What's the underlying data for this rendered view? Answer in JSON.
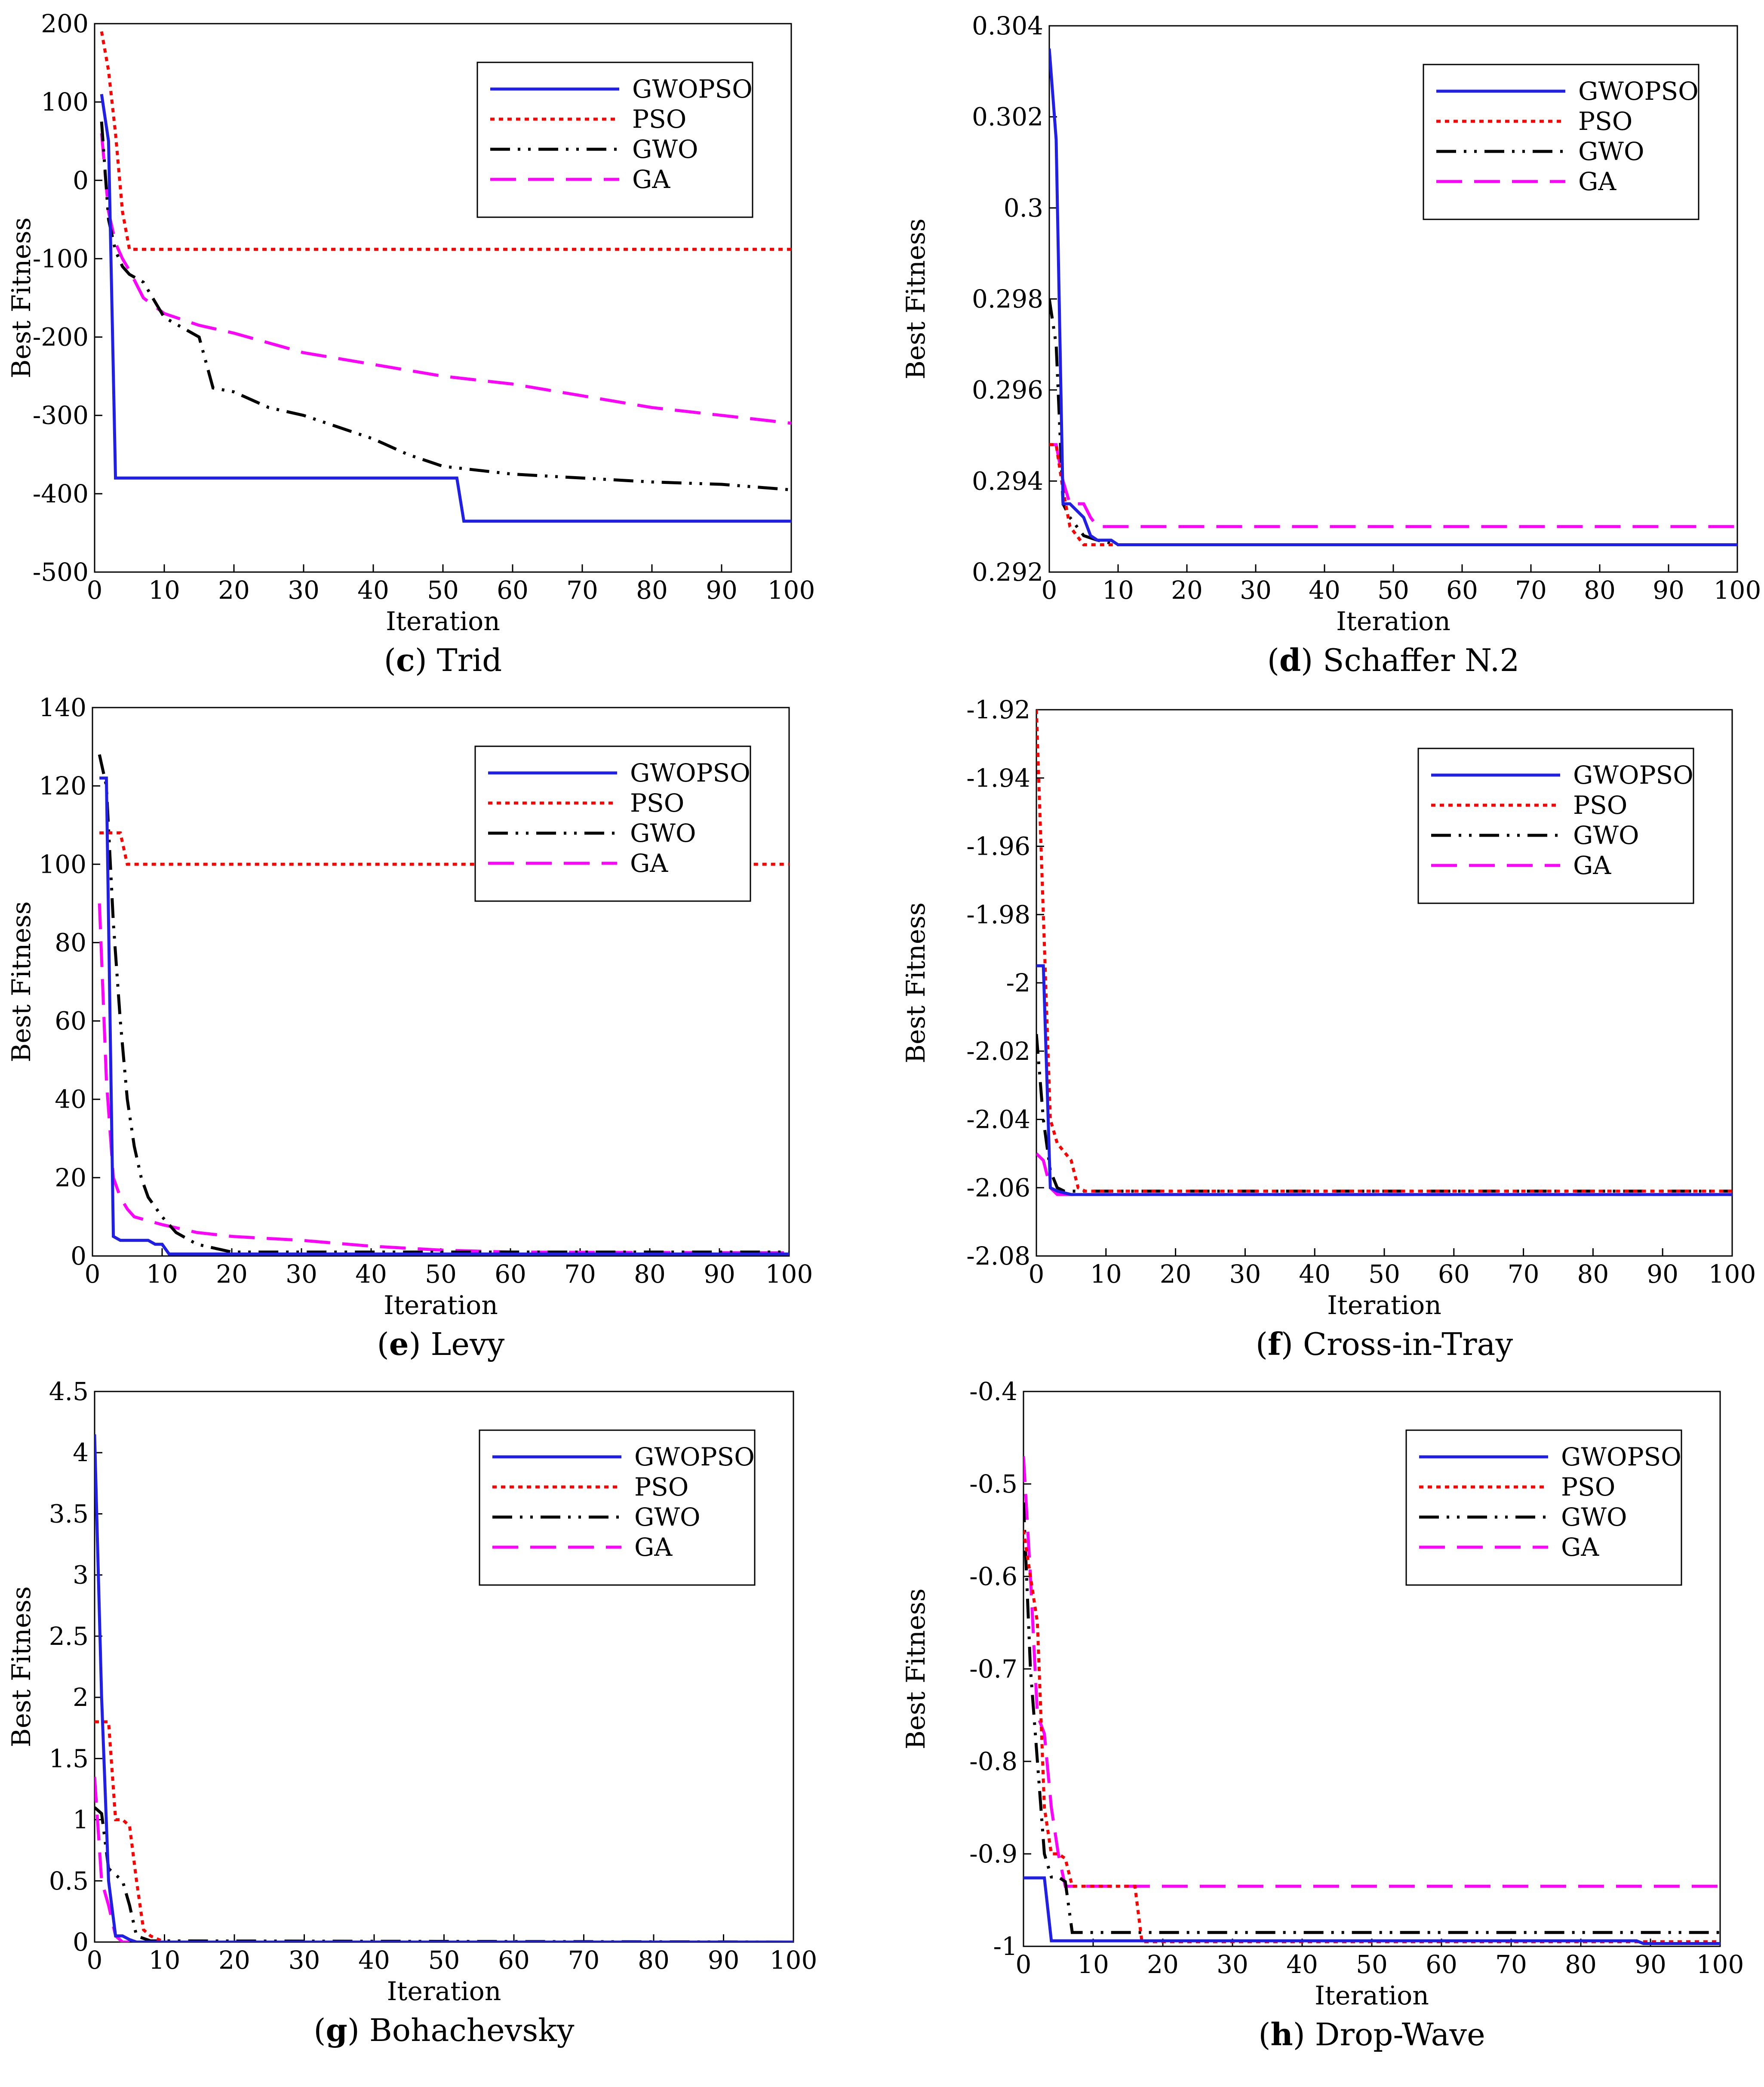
{
  "figure": {
    "series_styles": {
      "GWOPSO": {
        "color": "#1f1fe6",
        "dash": "solid"
      },
      "PSO": {
        "color": "#ff0000",
        "dash": "dotted"
      },
      "GWO": {
        "color": "#000000",
        "dash": "dashdotdot"
      },
      "GA": {
        "color": "#ff00ff",
        "dash": "dashed"
      }
    }
  },
  "chart_data": [
    {
      "id": "c",
      "type": "line",
      "letter": "c",
      "caption": "Trid",
      "xlabel": "Iteration",
      "ylabel": "Best Fitness",
      "xlim": [
        0,
        100
      ],
      "ylim": [
        -500,
        200
      ],
      "xticks": [
        0,
        10,
        20,
        30,
        40,
        50,
        60,
        70,
        80,
        90,
        100
      ],
      "xtick_labels": [
        "0",
        "10",
        "20",
        "30",
        "40",
        "50",
        "60",
        "70",
        "80",
        "90",
        "100"
      ],
      "yticks": [
        200,
        100,
        0,
        -100,
        -200,
        -300,
        -400,
        -500
      ],
      "ytick_labels": [
        "200",
        "100",
        "0",
        "-100",
        "-200",
        "-300",
        "-400",
        "-500"
      ],
      "legend": [
        "GWOPSO",
        "PSO",
        "GWO",
        "GA"
      ],
      "legend_position": "top-right",
      "series": [
        {
          "name": "GWOPSO",
          "x": [
            1,
            2,
            3,
            52,
            53,
            100
          ],
          "y": [
            110,
            50,
            -380,
            -380,
            -435,
            -435
          ]
        },
        {
          "name": "PSO",
          "x": [
            1,
            2,
            3,
            4,
            5,
            100
          ],
          "y": [
            190,
            140,
            60,
            -40,
            -88,
            -88
          ]
        },
        {
          "name": "GWO",
          "x": [
            1,
            2,
            3,
            4,
            5,
            7,
            10,
            15,
            17,
            20,
            25,
            30,
            40,
            45,
            50,
            60,
            70,
            80,
            90,
            100
          ],
          "y": [
            75,
            -50,
            -90,
            -110,
            -120,
            -130,
            -175,
            -200,
            -265,
            -270,
            -290,
            -300,
            -330,
            -350,
            -365,
            -375,
            -380,
            -385,
            -388,
            -395
          ]
        },
        {
          "name": "GA",
          "x": [
            1,
            2,
            3,
            4,
            5,
            7,
            10,
            15,
            20,
            30,
            40,
            50,
            60,
            70,
            80,
            90,
            100
          ],
          "y": [
            60,
            -40,
            -80,
            -100,
            -115,
            -150,
            -170,
            -185,
            -195,
            -220,
            -235,
            -250,
            -260,
            -275,
            -290,
            -300,
            -310
          ]
        }
      ]
    },
    {
      "id": "d",
      "type": "line",
      "letter": "d",
      "caption": "Schaffer N.2",
      "xlabel": "Iteration",
      "ylabel": "Best Fitness",
      "xlim": [
        0,
        100
      ],
      "ylim": [
        0.292,
        0.304
      ],
      "xticks": [
        0,
        10,
        20,
        30,
        40,
        50,
        60,
        70,
        80,
        90,
        100
      ],
      "xtick_labels": [
        "0",
        "10",
        "20",
        "30",
        "40",
        "50",
        "60",
        "70",
        "80",
        "90",
        "100"
      ],
      "yticks": [
        0.304,
        0.302,
        0.3,
        0.298,
        0.296,
        0.294,
        0.292
      ],
      "ytick_labels": [
        "0.304",
        "0.302",
        "0.3",
        "0.298",
        "0.296",
        "0.294",
        "0.292"
      ],
      "legend": [
        "GWOPSO",
        "PSO",
        "GWO",
        "GA"
      ],
      "legend_position": "top-right",
      "series": [
        {
          "name": "GWOPSO",
          "x": [
            0,
            1,
            2,
            3,
            5,
            6,
            7,
            9,
            10,
            100
          ],
          "y": [
            0.3035,
            0.3015,
            0.2935,
            0.2935,
            0.2932,
            0.2928,
            0.2927,
            0.2927,
            0.2926,
            0.2926
          ]
        },
        {
          "name": "PSO",
          "x": [
            0,
            1,
            2,
            3,
            4,
            5,
            7,
            10,
            100
          ],
          "y": [
            0.2948,
            0.2948,
            0.2938,
            0.293,
            0.2928,
            0.2926,
            0.2926,
            0.2926,
            0.2926
          ]
        },
        {
          "name": "GWO",
          "x": [
            0,
            1,
            2,
            3,
            5,
            7,
            10,
            100
          ],
          "y": [
            0.298,
            0.297,
            0.2935,
            0.2932,
            0.2928,
            0.2927,
            0.2926,
            0.2926
          ]
        },
        {
          "name": "GA",
          "x": [
            0,
            1,
            2,
            3,
            4,
            5,
            6,
            7,
            100
          ],
          "y": [
            0.2948,
            0.2948,
            0.294,
            0.2935,
            0.2935,
            0.2935,
            0.2932,
            0.293,
            0.293
          ]
        }
      ]
    },
    {
      "id": "e",
      "type": "line",
      "letter": "e",
      "caption": "Levy",
      "xlabel": "Iteration",
      "ylabel": "Best Fitness",
      "xlim": [
        0,
        100
      ],
      "ylim": [
        0,
        140
      ],
      "xticks": [
        0,
        10,
        20,
        30,
        40,
        50,
        60,
        70,
        80,
        90,
        100
      ],
      "xtick_labels": [
        "0",
        "10",
        "20",
        "30",
        "40",
        "50",
        "60",
        "70",
        "80",
        "90",
        "100"
      ],
      "yticks": [
        140,
        120,
        100,
        80,
        60,
        40,
        20,
        0
      ],
      "ytick_labels": [
        "140",
        "120",
        "100",
        "80",
        "60",
        "40",
        "20",
        "0"
      ],
      "legend": [
        "GWOPSO",
        "PSO",
        "GWO",
        "GA"
      ],
      "legend_position": "top-right",
      "series": [
        {
          "name": "GWOPSO",
          "x": [
            1,
            2,
            3,
            4,
            8,
            9,
            10,
            11,
            100
          ],
          "y": [
            122,
            122,
            5,
            4,
            4,
            3,
            3,
            0.5,
            0.5
          ]
        },
        {
          "name": "PSO",
          "x": [
            1,
            4,
            5,
            100
          ],
          "y": [
            108,
            108,
            100,
            100
          ]
        },
        {
          "name": "GWO",
          "x": [
            1,
            2,
            3,
            4,
            5,
            6,
            7,
            8,
            10,
            12,
            15,
            20,
            30,
            100
          ],
          "y": [
            128,
            120,
            85,
            60,
            40,
            28,
            20,
            15,
            10,
            6,
            3,
            1,
            1,
            1
          ]
        },
        {
          "name": "GA",
          "x": [
            1,
            2,
            3,
            4,
            5,
            6,
            8,
            10,
            15,
            20,
            30,
            40,
            50,
            60,
            100
          ],
          "y": [
            90,
            45,
            20,
            15,
            12,
            10,
            9,
            8,
            6,
            5,
            4,
            2.5,
            1.5,
            1,
            0.8
          ]
        }
      ]
    },
    {
      "id": "f",
      "type": "line",
      "letter": "f",
      "caption": "Cross-in-Tray",
      "xlabel": "Iteration",
      "ylabel": "Best Fitness",
      "xlim": [
        0,
        100
      ],
      "ylim": [
        -2.08,
        -1.92
      ],
      "xticks": [
        0,
        10,
        20,
        30,
        40,
        50,
        60,
        70,
        80,
        90,
        100
      ],
      "xtick_labels": [
        "0",
        "10",
        "20",
        "30",
        "40",
        "50",
        "60",
        "70",
        "80",
        "90",
        "100"
      ],
      "yticks": [
        -1.92,
        -1.94,
        -1.96,
        -1.98,
        -2,
        -2.02,
        -2.04,
        -2.06,
        -2.08
      ],
      "ytick_labels": [
        "-1.92",
        "-1.94",
        "-1.96",
        "-1.98",
        "-2",
        "-2.02",
        "-2.04",
        "-2.06",
        "-2.08"
      ],
      "legend": [
        "GWOPSO",
        "PSO",
        "GWO",
        "GA"
      ],
      "legend_position": "top-right",
      "series": [
        {
          "name": "GWOPSO",
          "x": [
            0,
            1,
            2,
            3,
            5,
            100
          ],
          "y": [
            -1.995,
            -1.995,
            -2.06,
            -2.061,
            -2.062,
            -2.062
          ]
        },
        {
          "name": "PSO",
          "x": [
            0,
            1,
            2,
            3,
            5,
            6,
            7,
            100
          ],
          "y": [
            -1.92,
            -1.98,
            -2.04,
            -2.047,
            -2.052,
            -2.06,
            -2.061,
            -2.061
          ]
        },
        {
          "name": "GWO",
          "x": [
            0,
            1,
            2,
            3,
            4,
            100
          ],
          "y": [
            -2.015,
            -2.04,
            -2.055,
            -2.06,
            -2.061,
            -2.061
          ]
        },
        {
          "name": "GA",
          "x": [
            0,
            1,
            2,
            3,
            100
          ],
          "y": [
            -2.05,
            -2.052,
            -2.06,
            -2.062,
            -2.062
          ]
        }
      ]
    },
    {
      "id": "g",
      "type": "line",
      "letter": "g",
      "caption": "Bohachevsky",
      "xlabel": "Iteration",
      "ylabel": "Best Fitness",
      "xlim": [
        0,
        100
      ],
      "ylim": [
        0,
        4.5
      ],
      "xticks": [
        0,
        10,
        20,
        30,
        40,
        50,
        60,
        70,
        80,
        90,
        100
      ],
      "xtick_labels": [
        "0",
        "10",
        "20",
        "30",
        "40",
        "50",
        "60",
        "70",
        "80",
        "90",
        "100"
      ],
      "yticks": [
        4.5,
        4,
        3.5,
        3,
        2.5,
        2,
        1.5,
        1,
        0.5,
        0
      ],
      "ytick_labels": [
        "4.5",
        "4",
        "3.5",
        "3",
        "2.5",
        "2",
        "1.5",
        "1",
        "0.5",
        "0"
      ],
      "legend": [
        "GWOPSO",
        "PSO",
        "GWO",
        "GA"
      ],
      "legend_position": "top-right",
      "series": [
        {
          "name": "GWOPSO",
          "x": [
            0,
            1,
            2,
            3,
            4,
            5,
            6,
            100
          ],
          "y": [
            4.15,
            2.0,
            0.5,
            0.05,
            0.05,
            0.02,
            0,
            0
          ]
        },
        {
          "name": "PSO",
          "x": [
            0,
            2,
            3,
            4,
            5,
            6,
            7,
            8,
            10,
            100
          ],
          "y": [
            1.8,
            1.8,
            1.0,
            1.0,
            0.95,
            0.5,
            0.1,
            0.05,
            0,
            0
          ]
        },
        {
          "name": "GWO",
          "x": [
            0,
            1,
            2,
            3,
            4,
            5,
            6,
            8,
            100
          ],
          "y": [
            1.1,
            1.05,
            0.6,
            0.55,
            0.5,
            0.3,
            0.05,
            0.01,
            0
          ]
        },
        {
          "name": "GA",
          "x": [
            0,
            1,
            2,
            3,
            4,
            100
          ],
          "y": [
            1.35,
            0.5,
            0.3,
            0.05,
            0,
            0
          ]
        }
      ]
    },
    {
      "id": "h",
      "type": "line",
      "letter": "h",
      "caption": "Drop-Wave",
      "xlabel": "Iteration",
      "ylabel": "Best Fitness",
      "xlim": [
        0,
        100
      ],
      "ylim": [
        -1,
        -0.4
      ],
      "xticks": [
        0,
        10,
        20,
        30,
        40,
        50,
        60,
        70,
        80,
        90,
        100
      ],
      "xtick_labels": [
        "0",
        "10",
        "20",
        "30",
        "40",
        "50",
        "60",
        "70",
        "80",
        "90",
        "100"
      ],
      "yticks": [
        -0.4,
        -0.5,
        -0.6,
        -0.7,
        -0.8,
        -0.9,
        -1
      ],
      "ytick_labels": [
        "-0.4",
        "-0.5",
        "-0.6",
        "-0.7",
        "-0.8",
        "-0.9",
        "-1"
      ],
      "legend": [
        "GWOPSO",
        "PSO",
        "GWO",
        "GA"
      ],
      "legend_position": "top-right",
      "series": [
        {
          "name": "GWOPSO",
          "x": [
            0,
            3,
            4,
            88,
            89,
            100
          ],
          "y": [
            -0.926,
            -0.926,
            -0.994,
            -0.994,
            -0.997,
            -0.997
          ]
        },
        {
          "name": "PSO",
          "x": [
            0,
            1,
            2,
            3,
            4,
            5,
            6,
            7,
            16,
            17,
            100
          ],
          "y": [
            -0.55,
            -0.6,
            -0.65,
            -0.85,
            -0.9,
            -0.9,
            -0.905,
            -0.935,
            -0.935,
            -0.995,
            -0.995
          ]
        },
        {
          "name": "GWO",
          "x": [
            0,
            1,
            2,
            3,
            4,
            5,
            6,
            7,
            100
          ],
          "y": [
            -0.52,
            -0.7,
            -0.8,
            -0.9,
            -0.925,
            -0.925,
            -0.93,
            -0.985,
            -0.985
          ]
        },
        {
          "name": "GA",
          "x": [
            0,
            1,
            2,
            3,
            4,
            5,
            6,
            7,
            100
          ],
          "y": [
            -0.47,
            -0.6,
            -0.75,
            -0.77,
            -0.85,
            -0.9,
            -0.935,
            -0.935,
            -0.935
          ]
        }
      ]
    }
  ]
}
